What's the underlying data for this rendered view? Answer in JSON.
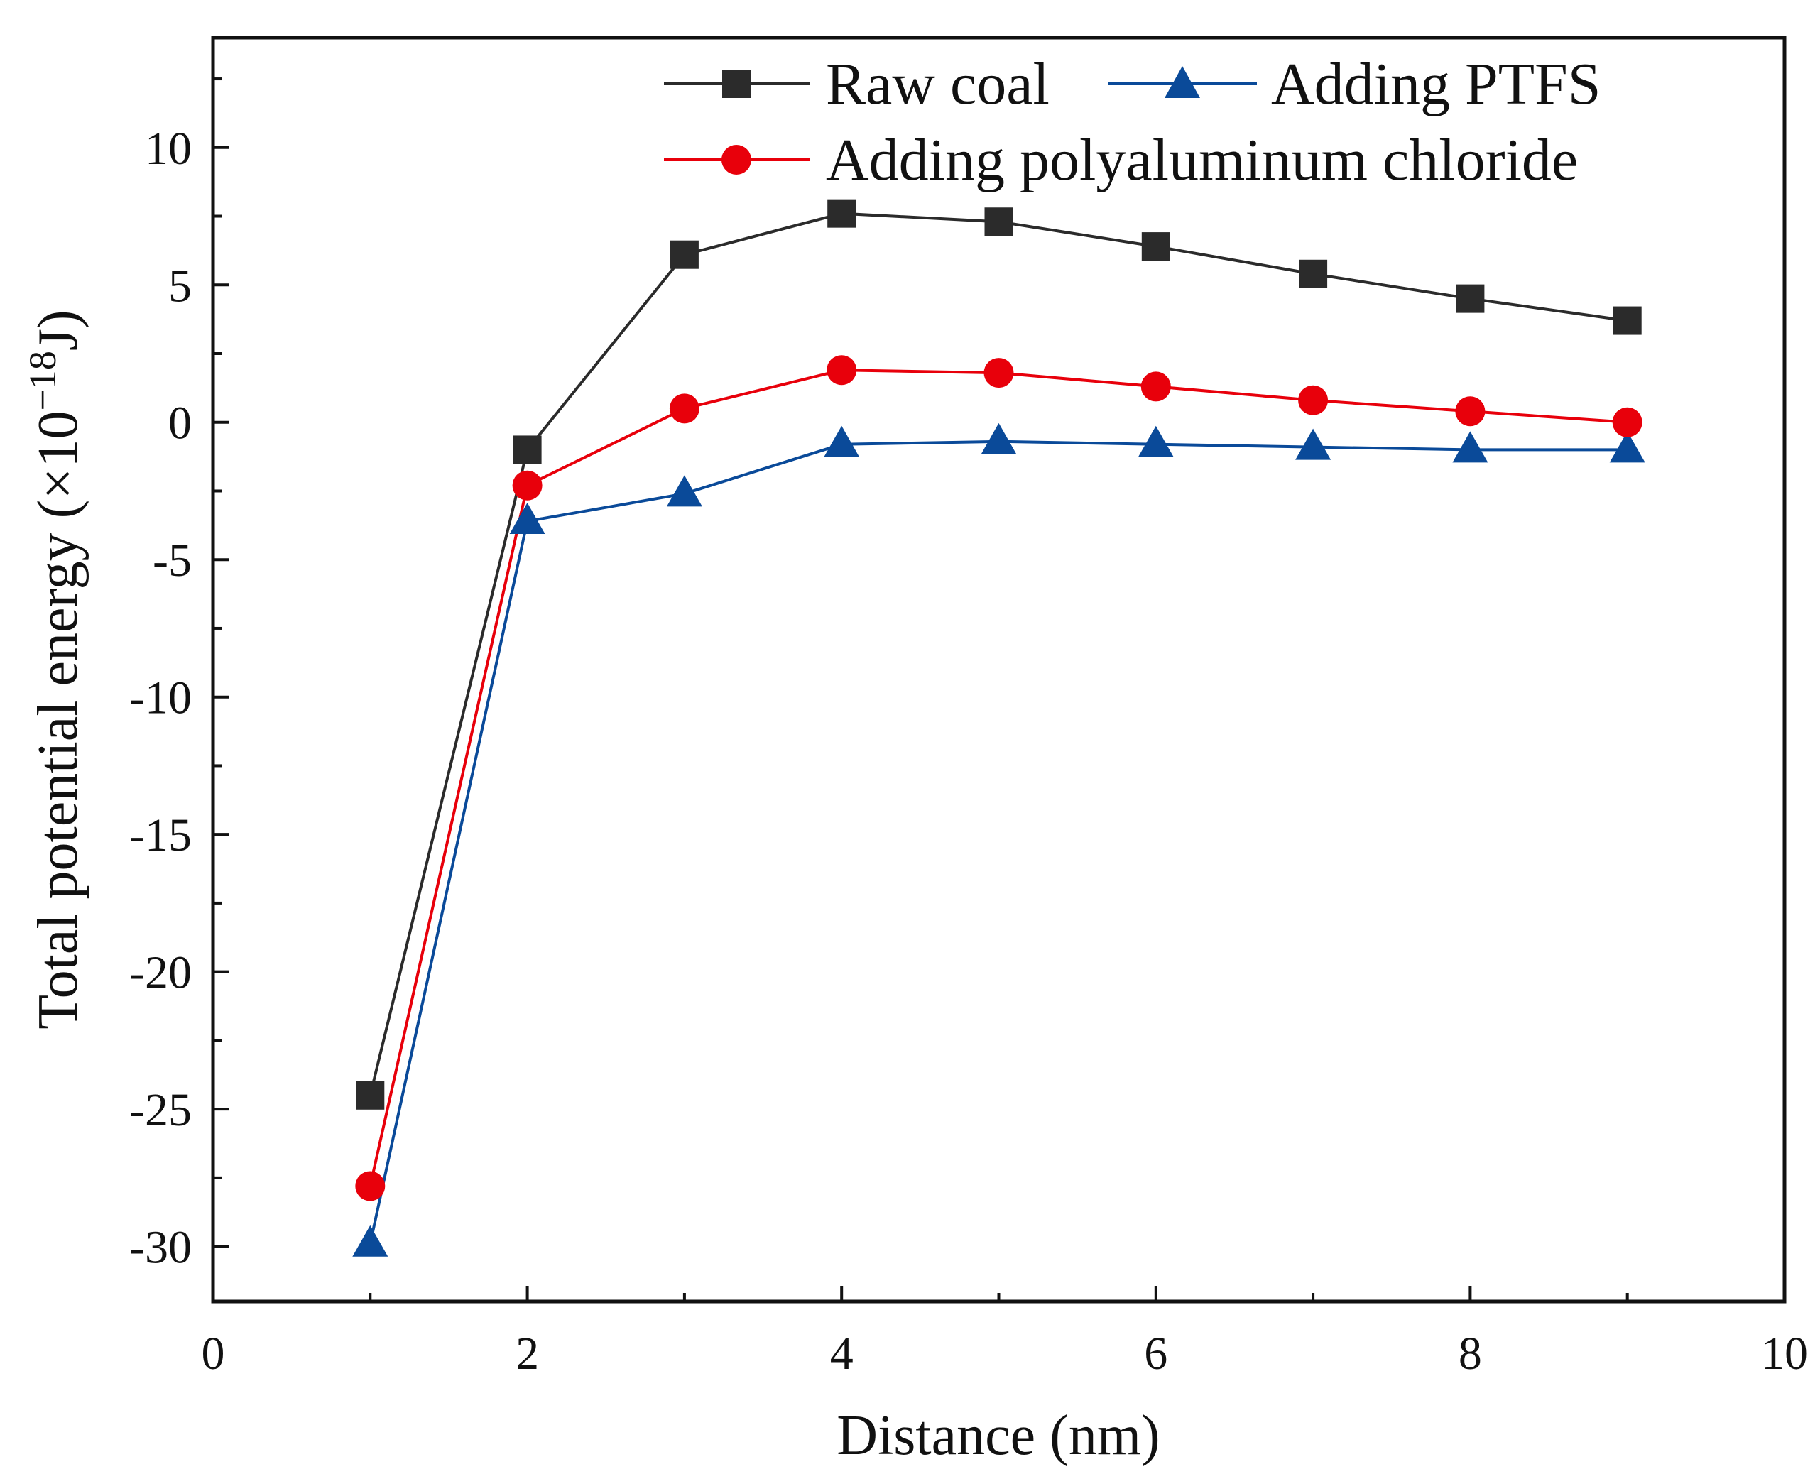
{
  "chart_data": {
    "type": "line",
    "title": "",
    "xlabel": "Distance (nm)",
    "ylabel_main": "Total potential energy (×10",
    "ylabel_exponent": "−18",
    "ylabel_unit": "J)",
    "xlim": [
      0,
      10
    ],
    "ylim": [
      -32,
      14
    ],
    "x_ticks": [
      0,
      2,
      4,
      6,
      8,
      10
    ],
    "x_tick_labels": [
      "0",
      "2",
      "4",
      "6",
      "8",
      "10"
    ],
    "y_ticks": [
      -30,
      -25,
      -20,
      -15,
      -10,
      -5,
      0,
      5,
      10
    ],
    "y_tick_labels": [
      "-30",
      "-25",
      "-20",
      "-15",
      "-10",
      "-5",
      "0",
      "5",
      "10"
    ],
    "grid": false,
    "legend_position": "top-right",
    "x": [
      1,
      2,
      3,
      4,
      5,
      6,
      7,
      8,
      9
    ],
    "series": [
      {
        "name": "Raw coal",
        "color": "#2b2b2b",
        "marker": "square",
        "values": [
          -24.5,
          -1.0,
          6.1,
          7.6,
          7.3,
          6.4,
          5.4,
          4.5,
          3.7
        ]
      },
      {
        "name": "Adding PTFS",
        "color": "#0a4a99",
        "marker": "triangle",
        "values": [
          -29.9,
          -3.6,
          -2.6,
          -0.8,
          -0.7,
          -0.8,
          -0.9,
          -1.0,
          -1.0
        ]
      },
      {
        "name": "Adding polyaluminum chloride",
        "color": "#e8000b",
        "marker": "circle",
        "values": [
          -27.8,
          -2.3,
          0.5,
          1.9,
          1.8,
          1.3,
          0.8,
          0.4,
          0.0
        ]
      }
    ]
  }
}
